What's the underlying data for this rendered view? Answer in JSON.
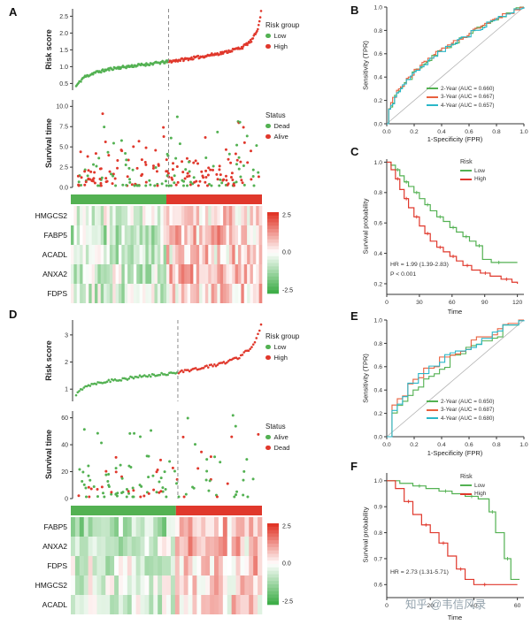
{
  "labels": {
    "A": "A",
    "B": "B",
    "C": "C",
    "D": "D",
    "E": "E",
    "F": "F"
  },
  "watermark": {
    "text": "知乎 @韦信风录"
  },
  "colors": {
    "green": "#53b152",
    "red": "#e0382c",
    "orange": "#e8613f",
    "teal": "#2ab7c8",
    "diagonal": "#b3b3b3",
    "dash": "#8c8c8c",
    "heat_pos": "#e13527",
    "heat_neg": "#3fae49",
    "axis": "#333333",
    "text": "#222222",
    "watermark": "#93a2ac"
  },
  "chart_data": [
    {
      "id": "A-risk",
      "panel": "A",
      "type": "scatter",
      "subtype": "risk-score-curve",
      "ylabel": "Risk score",
      "yticks": [
        "0.5",
        "1.0",
        "1.5",
        "2.0",
        "2.5"
      ],
      "ytick_values": [
        0.5,
        1.0,
        1.5,
        2.0,
        2.5
      ],
      "ylim": [
        0.3,
        2.72
      ],
      "n_points": 230,
      "cutoff_fraction": 0.5,
      "curve_profile": [
        [
          0,
          0.42
        ],
        [
          0.04,
          0.68
        ],
        [
          0.1,
          0.82
        ],
        [
          0.2,
          0.95
        ],
        [
          0.35,
          1.05
        ],
        [
          0.5,
          1.15
        ],
        [
          0.65,
          1.27
        ],
        [
          0.8,
          1.42
        ],
        [
          0.9,
          1.58
        ],
        [
          0.95,
          1.78
        ],
        [
          0.98,
          2.08
        ],
        [
          1.0,
          2.62
        ]
      ],
      "legend": {
        "title": "Risk group",
        "items": [
          {
            "label": "Low",
            "color_key": "green"
          },
          {
            "label": "High",
            "color_key": "red"
          }
        ]
      }
    },
    {
      "id": "A-surv",
      "panel": "A",
      "type": "scatter",
      "subtype": "survival-time-dots",
      "ylabel": "Survival time",
      "yticks": [
        "0.0",
        "2.5",
        "5.0",
        "7.5",
        "10.0"
      ],
      "ytick_values": [
        0,
        2.5,
        5,
        7.5,
        10
      ],
      "ylim": [
        0,
        10.8
      ],
      "n_points": 230,
      "cutoff_fraction": 0.5,
      "exp_scale": 2.4,
      "green_fraction": 0.45,
      "legend": {
        "title": "Status",
        "items": [
          {
            "label": "Dead",
            "color_key": "green"
          },
          {
            "label": "Alive",
            "color_key": "red"
          }
        ]
      }
    },
    {
      "id": "A-heat",
      "panel": "A",
      "type": "heatmap",
      "genes": [
        "HMGCS2",
        "FABP5",
        "ACADL",
        "ANXA2",
        "FDPS"
      ],
      "row_bias": [
        0.45,
        0.85,
        0.5,
        0.7,
        0.5
      ],
      "n_cols": 64,
      "cutoff_fraction": 0.5,
      "colorbar_ticks": [
        "2.5",
        "0.0",
        "-2.5"
      ],
      "value_range": [
        -2.5,
        2.5
      ]
    },
    {
      "id": "B-roc",
      "panel": "B",
      "type": "line",
      "subtype": "roc",
      "xlabel": "1-Specificity (FPR)",
      "ylabel": "Sensitivity (TPR)",
      "xticks": [
        "0.0",
        "0.2",
        "0.4",
        "0.6",
        "0.8",
        "1.0"
      ],
      "xtick_values": [
        0,
        0.2,
        0.4,
        0.6,
        0.8,
        1
      ],
      "yticks": [
        "0.0",
        "0.2",
        "0.4",
        "0.6",
        "0.8",
        "1.0"
      ],
      "ytick_values": [
        0,
        0.2,
        0.4,
        0.6,
        0.8,
        1
      ],
      "xlim": [
        0,
        1
      ],
      "ylim": [
        0,
        1
      ],
      "steps": 70,
      "diagonal": true,
      "series": [
        {
          "name": "2-Year (AUC = 0.660)",
          "auc": 0.66,
          "color_key": "green"
        },
        {
          "name": "3-Year (AUC = 0.667)",
          "auc": 0.667,
          "color_key": "orange"
        },
        {
          "name": "4-Year (AUC = 0.657)",
          "auc": 0.657,
          "color_key": "teal"
        }
      ]
    },
    {
      "id": "C-km",
      "panel": "C",
      "type": "line",
      "subtype": "kaplan-meier",
      "xlabel": "Time",
      "ylabel": "Survival probability",
      "xticks": [
        "0",
        "30",
        "60",
        "90",
        "120"
      ],
      "xtick_values": [
        0,
        30,
        60,
        90,
        120
      ],
      "xlim": [
        0,
        126
      ],
      "yticks": [
        "0.2",
        "0.4",
        "0.6",
        "0.8",
        "1.0"
      ],
      "ytick_values": [
        0.2,
        0.4,
        0.6,
        0.8,
        1.0
      ],
      "ylim": [
        0.13,
        1.02
      ],
      "legend": {
        "title": "Risk",
        "items": [
          {
            "label": "Low",
            "color_key": "green"
          },
          {
            "label": "High",
            "color_key": "red"
          }
        ]
      },
      "annotation": [
        "HR = 1.99 (1.39-2.83)",
        "P < 0.001"
      ],
      "series": [
        {
          "name": "Low",
          "color_key": "green",
          "points": [
            [
              0,
              1
            ],
            [
              4,
              0.98
            ],
            [
              8,
              0.95
            ],
            [
              12,
              0.91
            ],
            [
              16,
              0.87
            ],
            [
              20,
              0.84
            ],
            [
              25,
              0.8
            ],
            [
              30,
              0.76
            ],
            [
              35,
              0.72
            ],
            [
              40,
              0.68
            ],
            [
              46,
              0.64
            ],
            [
              52,
              0.61
            ],
            [
              58,
              0.57
            ],
            [
              64,
              0.54
            ],
            [
              70,
              0.51
            ],
            [
              76,
              0.48
            ],
            [
              82,
              0.45
            ],
            [
              88,
              0.36
            ],
            [
              96,
              0.34
            ],
            [
              110,
              0.34
            ],
            [
              120,
              0.34
            ]
          ]
        },
        {
          "name": "High",
          "color_key": "red",
          "points": [
            [
              0,
              1
            ],
            [
              4,
              0.95
            ],
            [
              8,
              0.89
            ],
            [
              12,
              0.82
            ],
            [
              16,
              0.76
            ],
            [
              20,
              0.7
            ],
            [
              25,
              0.64
            ],
            [
              30,
              0.58
            ],
            [
              35,
              0.53
            ],
            [
              40,
              0.48
            ],
            [
              46,
              0.44
            ],
            [
              52,
              0.41
            ],
            [
              58,
              0.38
            ],
            [
              64,
              0.35
            ],
            [
              70,
              0.32
            ],
            [
              78,
              0.29
            ],
            [
              86,
              0.27
            ],
            [
              95,
              0.25
            ],
            [
              105,
              0.23
            ],
            [
              115,
              0.21
            ],
            [
              120,
              0.2
            ]
          ]
        }
      ]
    },
    {
      "id": "D-risk",
      "panel": "D",
      "type": "scatter",
      "subtype": "risk-score-curve",
      "ylabel": "Risk score",
      "yticks": [
        "1",
        "2",
        "3"
      ],
      "ytick_values": [
        1,
        2,
        3
      ],
      "ylim": [
        0.55,
        3.55
      ],
      "n_points": 120,
      "cutoff_fraction": 0.55,
      "curve_profile": [
        [
          0,
          0.78
        ],
        [
          0.04,
          1.08
        ],
        [
          0.1,
          1.22
        ],
        [
          0.2,
          1.33
        ],
        [
          0.3,
          1.42
        ],
        [
          0.45,
          1.53
        ],
        [
          0.55,
          1.63
        ],
        [
          0.68,
          1.78
        ],
        [
          0.8,
          1.97
        ],
        [
          0.88,
          2.18
        ],
        [
          0.94,
          2.5
        ],
        [
          0.98,
          2.92
        ],
        [
          1.0,
          3.42
        ]
      ],
      "legend": {
        "title": "Risk group",
        "items": [
          {
            "label": "Low",
            "color_key": "green"
          },
          {
            "label": "High",
            "color_key": "red"
          }
        ]
      }
    },
    {
      "id": "D-surv",
      "panel": "D",
      "type": "scatter",
      "subtype": "survival-time-dots",
      "ylabel": "Survival time",
      "yticks": [
        "0",
        "20",
        "40",
        "60"
      ],
      "ytick_values": [
        0,
        20,
        40,
        60
      ],
      "ylim": [
        0,
        65
      ],
      "n_points": 120,
      "cutoff_fraction": 0.55,
      "exp_scale": 16,
      "green_fraction": 0.62,
      "legend": {
        "title": "Status",
        "items": [
          {
            "label": "Alive",
            "color_key": "green"
          },
          {
            "label": "Dead",
            "color_key": "red"
          }
        ]
      }
    },
    {
      "id": "D-heat",
      "panel": "D",
      "type": "heatmap",
      "genes": [
        "FABP5",
        "ANXA2",
        "FDPS",
        "HMGCS2",
        "ACADL"
      ],
      "row_bias": [
        0.85,
        0.7,
        0.55,
        0.45,
        0.4
      ],
      "n_cols": 44,
      "cutoff_fraction": 0.55,
      "colorbar_ticks": [
        "2.5",
        "0.0",
        "-2.5"
      ],
      "value_range": [
        -2.5,
        2.5
      ]
    },
    {
      "id": "E-roc",
      "panel": "E",
      "type": "line",
      "subtype": "roc",
      "xlabel": "1-Specificity (FPR)",
      "ylabel": "Sensitivity (TPR)",
      "xticks": [
        "0.0",
        "0.2",
        "0.4",
        "0.6",
        "0.8",
        "1.0"
      ],
      "xtick_values": [
        0,
        0.2,
        0.4,
        0.6,
        0.8,
        1
      ],
      "yticks": [
        "0.0",
        "0.2",
        "0.4",
        "0.6",
        "0.8",
        "1.0"
      ],
      "ytick_values": [
        0,
        0.2,
        0.4,
        0.6,
        0.8,
        1
      ],
      "xlim": [
        0,
        1
      ],
      "ylim": [
        0,
        1
      ],
      "steps": 26,
      "diagonal": true,
      "series": [
        {
          "name": "2-Year (AUC = 0.650)",
          "auc": 0.65,
          "color_key": "green"
        },
        {
          "name": "3-Year (AUC = 0.687)",
          "auc": 0.687,
          "color_key": "orange"
        },
        {
          "name": "4-Year (AUC = 0.680)",
          "auc": 0.68,
          "color_key": "teal"
        }
      ]
    },
    {
      "id": "F-km",
      "panel": "F",
      "type": "line",
      "subtype": "kaplan-meier",
      "xlabel": "Time",
      "ylabel": "Survival probability",
      "xticks": [
        "0",
        "20",
        "40",
        "60"
      ],
      "xtick_values": [
        0,
        20,
        40,
        60
      ],
      "xlim": [
        0,
        63
      ],
      "yticks": [
        "0.6",
        "0.7",
        "0.8",
        "0.9",
        "1.0"
      ],
      "ytick_values": [
        0.6,
        0.7,
        0.8,
        0.9,
        1.0
      ],
      "ylim": [
        0.55,
        1.03
      ],
      "legend": {
        "title": "Risk",
        "items": [
          {
            "label": "Low",
            "color_key": "green"
          },
          {
            "label": "High",
            "color_key": "red"
          }
        ]
      },
      "annotation": [
        "HR = 2.73 (1.31-5.71)"
      ],
      "series": [
        {
          "name": "Low",
          "color_key": "green",
          "points": [
            [
              0,
              1
            ],
            [
              6,
              0.99
            ],
            [
              12,
              0.98
            ],
            [
              18,
              0.97
            ],
            [
              24,
              0.96
            ],
            [
              30,
              0.95
            ],
            [
              36,
              0.94
            ],
            [
              42,
              0.93
            ],
            [
              47,
              0.88
            ],
            [
              50,
              0.8
            ],
            [
              54,
              0.7
            ],
            [
              57,
              0.62
            ],
            [
              61,
              0.62
            ]
          ]
        },
        {
          "name": "High",
          "color_key": "red",
          "points": [
            [
              0,
              1
            ],
            [
              4,
              0.97
            ],
            [
              8,
              0.92
            ],
            [
              12,
              0.87
            ],
            [
              16,
              0.83
            ],
            [
              20,
              0.8
            ],
            [
              24,
              0.76
            ],
            [
              28,
              0.71
            ],
            [
              32,
              0.66
            ],
            [
              36,
              0.62
            ],
            [
              40,
              0.6
            ],
            [
              50,
              0.6
            ],
            [
              60,
              0.6
            ]
          ]
        }
      ]
    }
  ]
}
